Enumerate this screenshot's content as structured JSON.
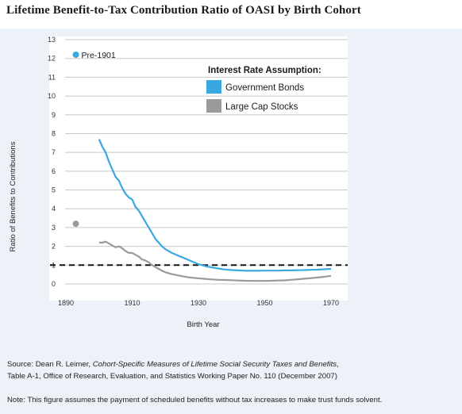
{
  "title": "Lifetime Benefit-to-Tax Contribution Ratio of OASI by Birth Cohort",
  "source": {
    "prefix": "Source: Dean R. Leimer, ",
    "italic": "Cohort-Specific Measures of Lifetime Social Security Taxes and Benefits",
    "suffix": ",",
    "line2": "Table A-1, Office of Research, Evaluation, and Statistics Working Paper No. 110 (December 2007)"
  },
  "note": "Note: This figure assumes the payment of scheduled benefits without tax increases to make trust funds solvent.",
  "colors": {
    "government_bonds": "#3aa8e0",
    "large_cap_stocks": "#9a9a9a",
    "reference_line": "#111111",
    "panel": "#edf2f8",
    "plot_bg": "#ffffff",
    "grid": "#c8c8c8"
  },
  "chart_data": {
    "type": "line",
    "xlabel": "Birth Year",
    "ylabel": "Ratio of Benefits to Contributions",
    "xlim": [
      1890,
      1970
    ],
    "ylim": [
      0,
      13
    ],
    "x_ticks": [
      "1890",
      "1910",
      "1930",
      "1950",
      "1970"
    ],
    "y_ticks": [
      "0",
      "1",
      "2",
      "3",
      "4",
      "5",
      "6",
      "7",
      "8",
      "9",
      "10",
      "11",
      "12",
      "13"
    ],
    "grid": "horizontal",
    "legend": {
      "title": "Interest Rate Assumption:",
      "placement": "top-right",
      "entries": [
        "Government Bonds",
        "Large Cap Stocks"
      ]
    },
    "reference_line": {
      "y": 1,
      "style": "dashed"
    },
    "annotations": [
      {
        "text": "Pre-1901",
        "x": 1893,
        "y": 12.2,
        "series": "Government Bonds"
      }
    ],
    "series": [
      {
        "name": "Government Bonds",
        "outlier": {
          "x": 1893,
          "y": 12.2
        },
        "x": [
          1900,
          1901,
          1902,
          1903,
          1904,
          1905,
          1906,
          1907,
          1908,
          1909,
          1910,
          1911,
          1912,
          1913,
          1914,
          1915,
          1916,
          1917,
          1918,
          1919,
          1920,
          1922,
          1924,
          1926,
          1928,
          1930,
          1932,
          1934,
          1936,
          1938,
          1940,
          1942,
          1944,
          1946,
          1948,
          1950,
          1952,
          1954,
          1956,
          1958,
          1960,
          1962,
          1964,
          1966,
          1968,
          1970
        ],
        "values": [
          7.7,
          7.3,
          7.0,
          6.5,
          6.1,
          5.7,
          5.5,
          5.1,
          4.8,
          4.6,
          4.5,
          4.1,
          3.9,
          3.6,
          3.3,
          3.0,
          2.7,
          2.4,
          2.2,
          2.0,
          1.85,
          1.65,
          1.5,
          1.35,
          1.2,
          1.05,
          0.95,
          0.88,
          0.82,
          0.77,
          0.74,
          0.72,
          0.7,
          0.7,
          0.7,
          0.71,
          0.71,
          0.71,
          0.72,
          0.72,
          0.73,
          0.74,
          0.75,
          0.76,
          0.78,
          0.8
        ]
      },
      {
        "name": "Large Cap Stocks",
        "outlier": {
          "x": 1893,
          "y": 3.2
        },
        "x": [
          1900,
          1901,
          1902,
          1903,
          1904,
          1905,
          1906,
          1907,
          1908,
          1909,
          1910,
          1911,
          1912,
          1913,
          1914,
          1915,
          1916,
          1917,
          1918,
          1919,
          1920,
          1922,
          1924,
          1926,
          1928,
          1930,
          1932,
          1934,
          1936,
          1938,
          1940,
          1942,
          1944,
          1946,
          1948,
          1950,
          1952,
          1954,
          1956,
          1958,
          1960,
          1962,
          1964,
          1966,
          1968,
          1970
        ],
        "values": [
          2.2,
          2.2,
          2.25,
          2.15,
          2.05,
          1.95,
          2.0,
          1.9,
          1.75,
          1.65,
          1.65,
          1.55,
          1.45,
          1.3,
          1.25,
          1.15,
          1.0,
          0.9,
          0.8,
          0.7,
          0.62,
          0.52,
          0.45,
          0.38,
          0.33,
          0.3,
          0.27,
          0.24,
          0.22,
          0.21,
          0.2,
          0.18,
          0.17,
          0.16,
          0.16,
          0.16,
          0.17,
          0.18,
          0.19,
          0.22,
          0.25,
          0.28,
          0.31,
          0.34,
          0.38,
          0.43
        ]
      }
    ]
  }
}
